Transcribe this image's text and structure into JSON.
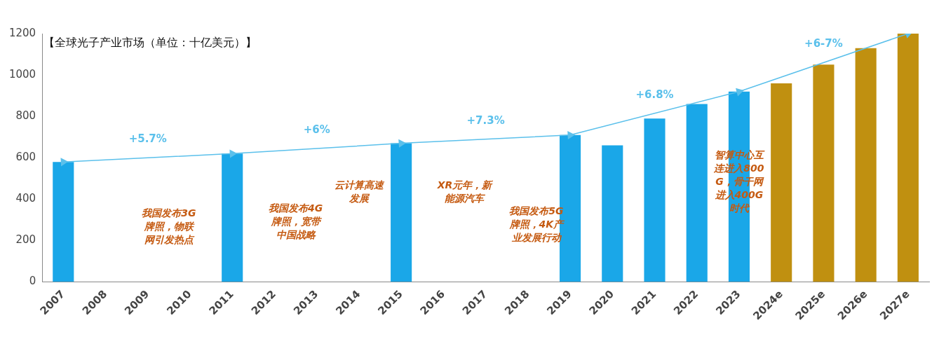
{
  "chart_data": {
    "type": "bar",
    "title": "【全球光子产业市场（单位：十亿美元）】",
    "categories": [
      "2007",
      "2008",
      "2009",
      "2010",
      "2011",
      "2012",
      "2013",
      "2014",
      "2015",
      "2016",
      "2017",
      "2018",
      "2019",
      "2020",
      "2021",
      "2022",
      "2023",
      "2024e",
      "2025e",
      "2026e",
      "2027e"
    ],
    "series": [
      {
        "color": "#1aa7e8",
        "values": [
          580,
          null,
          null,
          null,
          620,
          null,
          null,
          null,
          670,
          null,
          null,
          null,
          710,
          660,
          790,
          860,
          920,
          null,
          null,
          null,
          null
        ]
      },
      {
        "color": "#c09010",
        "values": [
          null,
          null,
          null,
          null,
          null,
          null,
          null,
          null,
          null,
          null,
          null,
          null,
          null,
          null,
          null,
          null,
          null,
          960,
          1050,
          1130,
          1200
        ]
      },
      {
        "type": "line",
        "color": "#5bc0eb",
        "values": [
          580,
          null,
          null,
          null,
          620,
          null,
          null,
          null,
          670,
          null,
          null,
          null,
          710,
          null,
          null,
          null,
          920,
          null,
          null,
          null,
          1200
        ]
      }
    ],
    "stacked": true,
    "ylim": [
      0,
      1200
    ],
    "yticks": [
      0,
      200,
      400,
      600,
      800,
      1000,
      1200
    ],
    "grid": false,
    "legend": false,
    "marker": "triangle",
    "annotations": [
      "+5.7%",
      "+6%",
      "+7.3%",
      "+6.8%",
      "+6-7%",
      "我国发布3G牌照，物联网引发热点",
      "我国发布4G牌照，宽带中国战略",
      "云计算高速发展",
      "XR元年，新能源汽车",
      "我国发布5G牌照，4K产业发展行动",
      "智算中心互连进入800G，骨干网进入400G时代"
    ]
  }
}
